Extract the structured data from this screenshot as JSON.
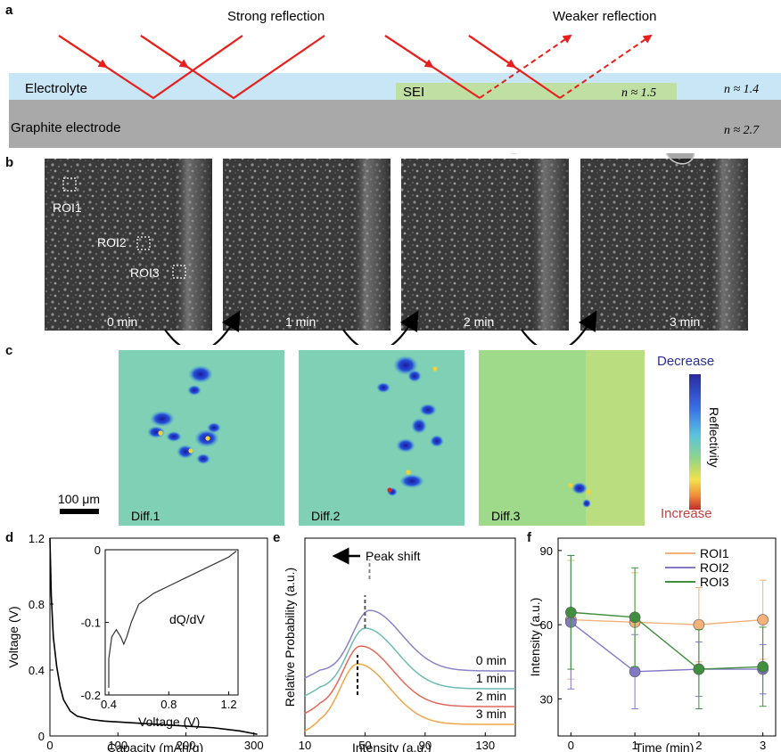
{
  "panels": {
    "a": "a",
    "b": "b",
    "c": "c",
    "d": "d",
    "e": "e",
    "f": "f"
  },
  "panel_a": {
    "strong_reflection": "Strong reflection",
    "weaker_reflection": "Weaker reflection",
    "electrolyte": "Electrolyte",
    "graphite": "Graphite electrode",
    "sei": "SEI",
    "n_sei": "n ≈ 1.5",
    "n_electrolyte": "n ≈ 1.4",
    "n_graphite": "n ≈ 2.7",
    "colors": {
      "electrolyte": "#c9e6f6",
      "graphite": "#a9a9a9",
      "sei": "#bfe0a2",
      "ray": "#e8201d"
    }
  },
  "panel_b": {
    "times": [
      "0 min",
      "1 min",
      "2 min",
      "3 min"
    ],
    "rois": [
      "ROI1",
      "ROI2",
      "ROI3"
    ]
  },
  "panel_c": {
    "diffs": [
      "Diff.1",
      "Diff.2",
      "Diff.3"
    ],
    "scalebar": "100 μm",
    "colorbar_top": "Decrease",
    "colorbar_bottom": "Increase",
    "colorbar_label": "Reflectivity"
  },
  "chart_data": [
    {
      "panel": "d",
      "type": "line",
      "xlabel": "Capacity (mAh/g)",
      "ylabel": "Voltage (V)",
      "xlim": [
        0,
        320
      ],
      "ylim": [
        0,
        1.2
      ],
      "xticks": [
        "0",
        "100",
        "200",
        "300"
      ],
      "yticks": [
        "0",
        "0.4",
        "0.8",
        "1.2"
      ],
      "x": [
        0,
        2,
        5,
        10,
        15,
        20,
        30,
        40,
        60,
        80,
        120,
        160,
        200,
        240,
        280,
        305
      ],
      "y": [
        1.2,
        0.85,
        0.6,
        0.42,
        0.3,
        0.22,
        0.15,
        0.12,
        0.1,
        0.09,
        0.08,
        0.07,
        0.06,
        0.05,
        0.03,
        0.01
      ],
      "inset": {
        "label": "dQ/dV",
        "xlabel": "Voltage (V)",
        "xlim": [
          0.4,
          1.25
        ],
        "ylim": [
          -0.2,
          0
        ],
        "xticks": [
          "0.4",
          "0.8",
          "1.2"
        ],
        "yticks": [
          "0",
          "-0.1",
          "-0.2"
        ],
        "x": [
          0.38,
          0.4,
          0.42,
          0.45,
          0.48,
          0.5,
          0.52,
          0.55,
          0.6,
          0.7,
          0.8,
          0.9,
          1.0,
          1.1,
          1.2,
          1.25
        ],
        "y": [
          -0.19,
          -0.15,
          -0.12,
          -0.11,
          -0.12,
          -0.13,
          -0.12,
          -0.1,
          -0.075,
          -0.06,
          -0.05,
          -0.04,
          -0.03,
          -0.02,
          -0.01,
          -0.002
        ]
      }
    },
    {
      "panel": "e",
      "type": "line",
      "xlabel": "Intensity (a.u.)",
      "ylabel": "Relative Probability (a.u.)",
      "xlim": [
        10,
        150
      ],
      "xticks": [
        "10",
        "50",
        "90",
        "130"
      ],
      "annotation": "Peak shift",
      "series": [
        {
          "name": "0 min",
          "peak": 53,
          "offset": 3,
          "color": "#8a84c8"
        },
        {
          "name": "1 min",
          "peak": 50,
          "offset": 2,
          "color": "#6cbcb4"
        },
        {
          "name": "2 min",
          "peak": 47,
          "offset": 1,
          "color": "#e4685a"
        },
        {
          "name": "3 min",
          "peak": 45,
          "offset": 0,
          "color": "#f0a64a"
        }
      ]
    },
    {
      "panel": "f",
      "type": "line",
      "xlabel": "Time (min)",
      "ylabel": "Intensity (a.u.)",
      "x": [
        0,
        1,
        2,
        3
      ],
      "xticks": [
        "0",
        "1",
        "2",
        "3"
      ],
      "yticks": [
        "30",
        "60",
        "90"
      ],
      "xlim": [
        -0.2,
        3.2
      ],
      "ylim": [
        15,
        95
      ],
      "series": [
        {
          "name": "ROI1",
          "values": [
            62,
            61,
            60,
            62
          ],
          "err": [
            24,
            20,
            15,
            16
          ],
          "color": "#f4b27a"
        },
        {
          "name": "ROI2",
          "values": [
            61,
            41,
            42,
            42
          ],
          "err": [
            27,
            15,
            11,
            10
          ],
          "color": "#8378c6"
        },
        {
          "name": "ROI3",
          "values": [
            65,
            63,
            42,
            43
          ],
          "err": [
            23,
            20,
            16,
            16
          ],
          "color": "#3f8f3f"
        }
      ]
    }
  ]
}
